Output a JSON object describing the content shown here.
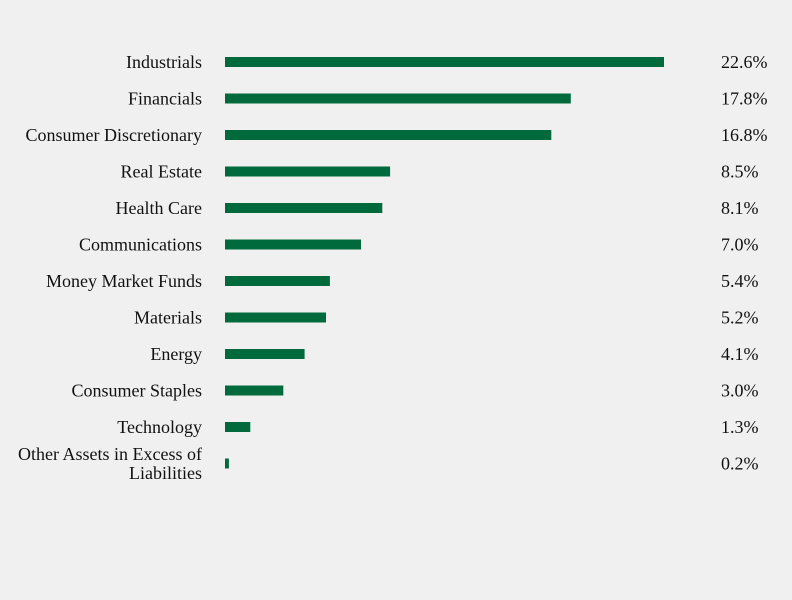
{
  "chart_data": {
    "type": "bar",
    "orientation": "horizontal",
    "categories": [
      "Industrials",
      "Financials",
      "Consumer Discretionary",
      "Real Estate",
      "Health Care",
      "Communications",
      "Money Market Funds",
      "Materials",
      "Energy",
      "Consumer Staples",
      "Technology",
      "Other Assets in Excess of Liabilities"
    ],
    "values": [
      22.6,
      17.8,
      16.8,
      8.5,
      8.1,
      7.0,
      5.4,
      5.2,
      4.1,
      3.0,
      1.3,
      0.2
    ],
    "value_labels": [
      "22.6%",
      "17.8%",
      "16.8%",
      "8.5%",
      "8.1%",
      "7.0%",
      "5.4%",
      "5.2%",
      "4.1%",
      "3.0%",
      "1.3%",
      "0.2%"
    ],
    "title": "",
    "xlabel": "",
    "ylabel": "",
    "xlim": [
      0,
      22.6
    ],
    "grid": false,
    "legend": "none",
    "bar_color": "#006a3d"
  }
}
